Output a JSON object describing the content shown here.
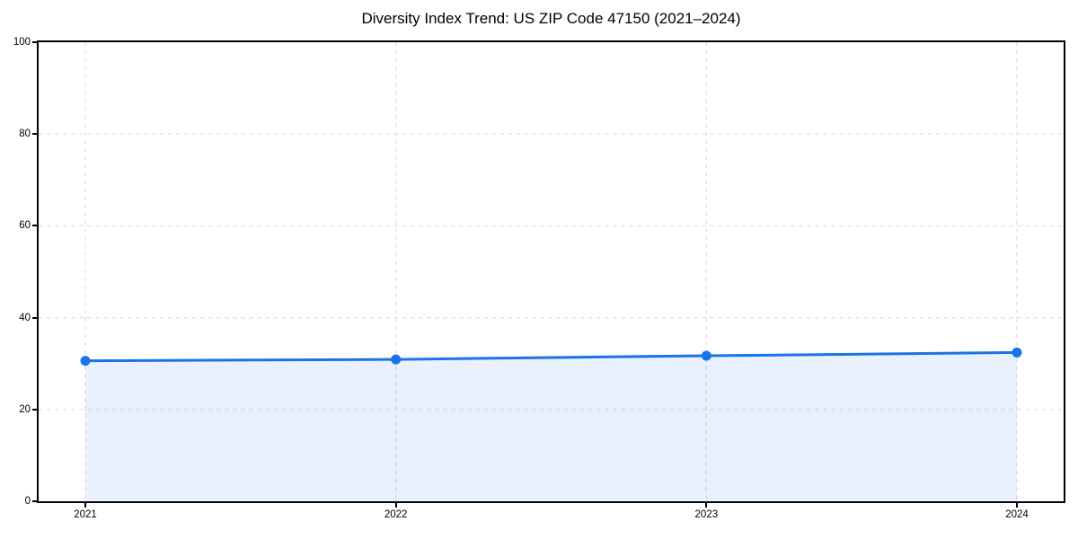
{
  "title": "Diversity Index Trend: US ZIP Code 47150 (2021–2024)",
  "chart_data": {
    "type": "line",
    "title": "Diversity Index Trend: US ZIP Code 47150 (2021–2024)",
    "categories": [
      "2021",
      "2022",
      "2023",
      "2024"
    ],
    "series": [
      {
        "name": "Diversity Index",
        "values": [
          30.6,
          30.9,
          31.7,
          32.4
        ]
      }
    ],
    "xlabel": "",
    "ylabel": "",
    "ylim": [
      0,
      100
    ],
    "yticks": [
      0,
      20,
      40,
      60,
      80,
      100
    ],
    "grid": true,
    "grid_style": "dashed",
    "legend": "none",
    "area_fill": true,
    "marker": "circle"
  },
  "colors": {
    "line": "#1a73e8",
    "marker": "#1a73e8",
    "area_fill": "#1a73e8",
    "area_fill_opacity": "0.10",
    "grid": "#e0e0e0",
    "spine": "#000000",
    "text": "#000000",
    "background": "#ffffff"
  }
}
